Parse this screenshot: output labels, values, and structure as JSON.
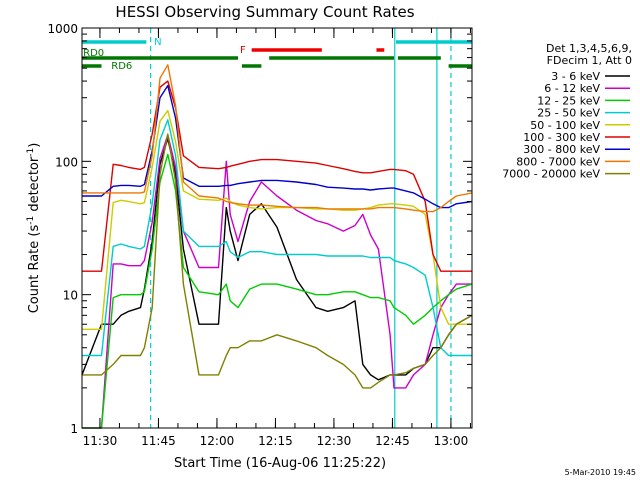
{
  "chart_data": {
    "type": "line",
    "title": "HESSI Observing Summary Count Rates",
    "xlabel": "Start Time (16-Aug-06 11:25:22)",
    "ylabel_main": "Count Rate (s",
    "ylabel_sup1": "-1",
    "ylabel_mid": " detector",
    "ylabel_sup2": "-1",
    "ylabel_end": ")",
    "y_scale": "log",
    "ylim": [
      1,
      1000
    ],
    "xlim_minutes": [
      0,
      100
    ],
    "x_ticks": [
      {
        "label": "11:30",
        "minutes": 4.6
      },
      {
        "label": "11:45",
        "minutes": 19.6
      },
      {
        "label": "12:00",
        "minutes": 34.6
      },
      {
        "label": "12:15",
        "minutes": 49.6
      },
      {
        "label": "12:30",
        "minutes": 64.6
      },
      {
        "label": "12:45",
        "minutes": 79.6
      },
      {
        "label": "13:00",
        "minutes": 94.6
      }
    ],
    "y_ticks": [
      {
        "label": "1",
        "value": 1
      },
      {
        "label": "10",
        "value": 10
      },
      {
        "label": "100",
        "value": 100
      },
      {
        "label": "1000",
        "value": 1000
      }
    ],
    "legend_header": [
      "Det 1,3,4,5,6,9,",
      "FDecim 1, Att 0"
    ],
    "legend_placement": "right",
    "footer": "5-Mar-2010 19:45",
    "x_minutes": [
      0,
      5,
      8,
      10,
      12,
      15,
      16,
      18,
      20,
      22,
      24,
      26,
      30,
      35,
      37,
      38,
      40,
      43,
      46,
      50,
      55,
      60,
      63,
      67,
      70,
      72,
      74,
      76,
      79,
      80,
      83,
      85,
      88,
      90,
      92,
      94,
      96,
      100
    ],
    "series": [
      {
        "name": "3 - 6 keV",
        "color": "#000000",
        "values": [
          2.5,
          6,
          6,
          7,
          7.5,
          8,
          11,
          25,
          95,
          148,
          80,
          22,
          6,
          6,
          45,
          30,
          18,
          40,
          48,
          32,
          13,
          8,
          7.5,
          8,
          9,
          3,
          2.5,
          2.3,
          2.5,
          2.5,
          2.5,
          2.8,
          3,
          4,
          4,
          5,
          6,
          7
        ]
      },
      {
        "name": "6 - 12 keV",
        "color": "#cc00cc",
        "values": [
          1,
          1,
          17,
          17,
          16.5,
          16.5,
          18,
          35,
          105,
          158,
          90,
          30,
          16,
          16,
          100,
          40,
          25,
          50,
          70,
          55,
          43,
          36,
          34,
          30,
          33,
          40,
          28,
          22,
          5,
          2,
          2,
          2.5,
          3,
          5,
          8,
          10,
          12,
          12
        ]
      },
      {
        "name": "12 - 25 keV",
        "color": "#00cc00",
        "values": [
          1,
          1,
          9.5,
          10,
          10,
          10,
          10.5,
          22,
          70,
          113,
          60,
          16,
          10.5,
          10,
          12,
          9,
          8,
          11,
          12,
          12,
          11,
          10,
          10,
          10.5,
          10.5,
          10,
          9.5,
          9.5,
          9,
          8,
          7,
          6,
          7,
          8,
          9,
          10,
          11,
          12
        ]
      },
      {
        "name": "25 - 50 keV",
        "color": "#00cccc",
        "values": [
          3.5,
          3.5,
          23,
          24,
          23,
          22,
          23,
          48,
          145,
          205,
          110,
          30,
          23,
          23,
          25,
          21,
          19,
          21,
          21,
          20,
          20,
          20,
          19.5,
          19.5,
          19.5,
          19.5,
          19,
          19,
          19,
          18,
          17,
          16,
          14,
          8,
          4,
          3.5,
          3.5,
          3.5
        ]
      },
      {
        "name": "50 - 100 keV",
        "color": "#cccc00",
        "values": [
          5.5,
          5.5,
          49,
          51,
          50,
          48,
          49,
          90,
          200,
          240,
          140,
          60,
          52,
          51,
          53,
          50,
          47,
          45,
          44,
          45,
          45,
          44,
          44,
          43,
          43,
          44,
          45,
          47,
          48,
          48,
          47,
          46,
          40,
          20,
          8,
          6,
          6,
          6
        ]
      },
      {
        "name": "100 - 300 keV",
        "color": "#dd0000",
        "values": [
          15,
          15,
          95,
          93,
          90,
          87,
          90,
          160,
          360,
          400,
          250,
          110,
          90,
          88,
          90,
          92,
          95,
          100,
          103,
          103,
          100,
          97,
          93,
          88,
          84,
          82,
          82,
          84,
          87,
          87,
          85,
          80,
          50,
          20,
          15,
          15,
          15,
          15
        ]
      },
      {
        "name": "300 - 800 keV",
        "color": "#0000cc",
        "values": [
          55,
          55,
          65,
          66,
          66,
          65,
          67,
          120,
          300,
          370,
          210,
          75,
          65,
          65,
          66,
          66,
          68,
          70,
          72,
          72,
          70,
          67,
          64,
          63,
          62,
          62,
          61,
          62,
          63,
          63,
          60,
          58,
          52,
          48,
          45,
          45,
          48,
          50
        ]
      },
      {
        "name": "800 - 7000 keV",
        "color": "#ee7700",
        "values": [
          58,
          58,
          58,
          58,
          58,
          58,
          59,
          110,
          420,
          530,
          260,
          70,
          55,
          53,
          50,
          49,
          48,
          47,
          47,
          46,
          45,
          45,
          44,
          44,
          44,
          44,
          44,
          45,
          45,
          45,
          44,
          43,
          42,
          42,
          45,
          50,
          55,
          58
        ]
      },
      {
        "name": "7000 - 20000 keV",
        "color": "#808000",
        "values": [
          2.5,
          2.5,
          3,
          3.5,
          3.5,
          3.5,
          4,
          8,
          80,
          160,
          70,
          12,
          2.5,
          2.5,
          3.5,
          4,
          4,
          4.5,
          4.5,
          5,
          4.5,
          4,
          3.5,
          3,
          2.5,
          2,
          2,
          2.2,
          2.5,
          2.5,
          2.6,
          2.8,
          3,
          3.5,
          4,
          5,
          6,
          7
        ]
      }
    ],
    "flag_rows": [
      {
        "name": "N",
        "color": "#00cccc",
        "intervals": [
          [
            0,
            16.5
          ],
          [
            80.5,
            100
          ]
        ],
        "label": "N",
        "label_at": 18.5,
        "label_row_offset": 3
      },
      {
        "name": "F",
        "color": "#ee0000",
        "intervals": [
          [
            43.5,
            61.5
          ],
          [
            75.5,
            77.5
          ]
        ],
        "label": "F",
        "label_at": 40.5,
        "label_row_offset": 3
      },
      {
        "name": "RD0",
        "color": "#007700",
        "intervals": [
          [
            0,
            40
          ],
          [
            48,
            80
          ],
          [
            81,
            92
          ]
        ],
        "label": "RD0",
        "label_at": 0.3,
        "label_row_offset": -2
      },
      {
        "name": "RD6",
        "color": "#007700",
        "intervals": [
          [
            0,
            5
          ],
          [
            41,
            46
          ],
          [
            94,
            100
          ]
        ],
        "label": "RD6",
        "label_at": 7.5,
        "label_row_offset": 3
      }
    ],
    "vertical_markers": {
      "solid": [
        80.2,
        91
      ],
      "dashed": [
        17.6,
        94.6
      ]
    }
  }
}
